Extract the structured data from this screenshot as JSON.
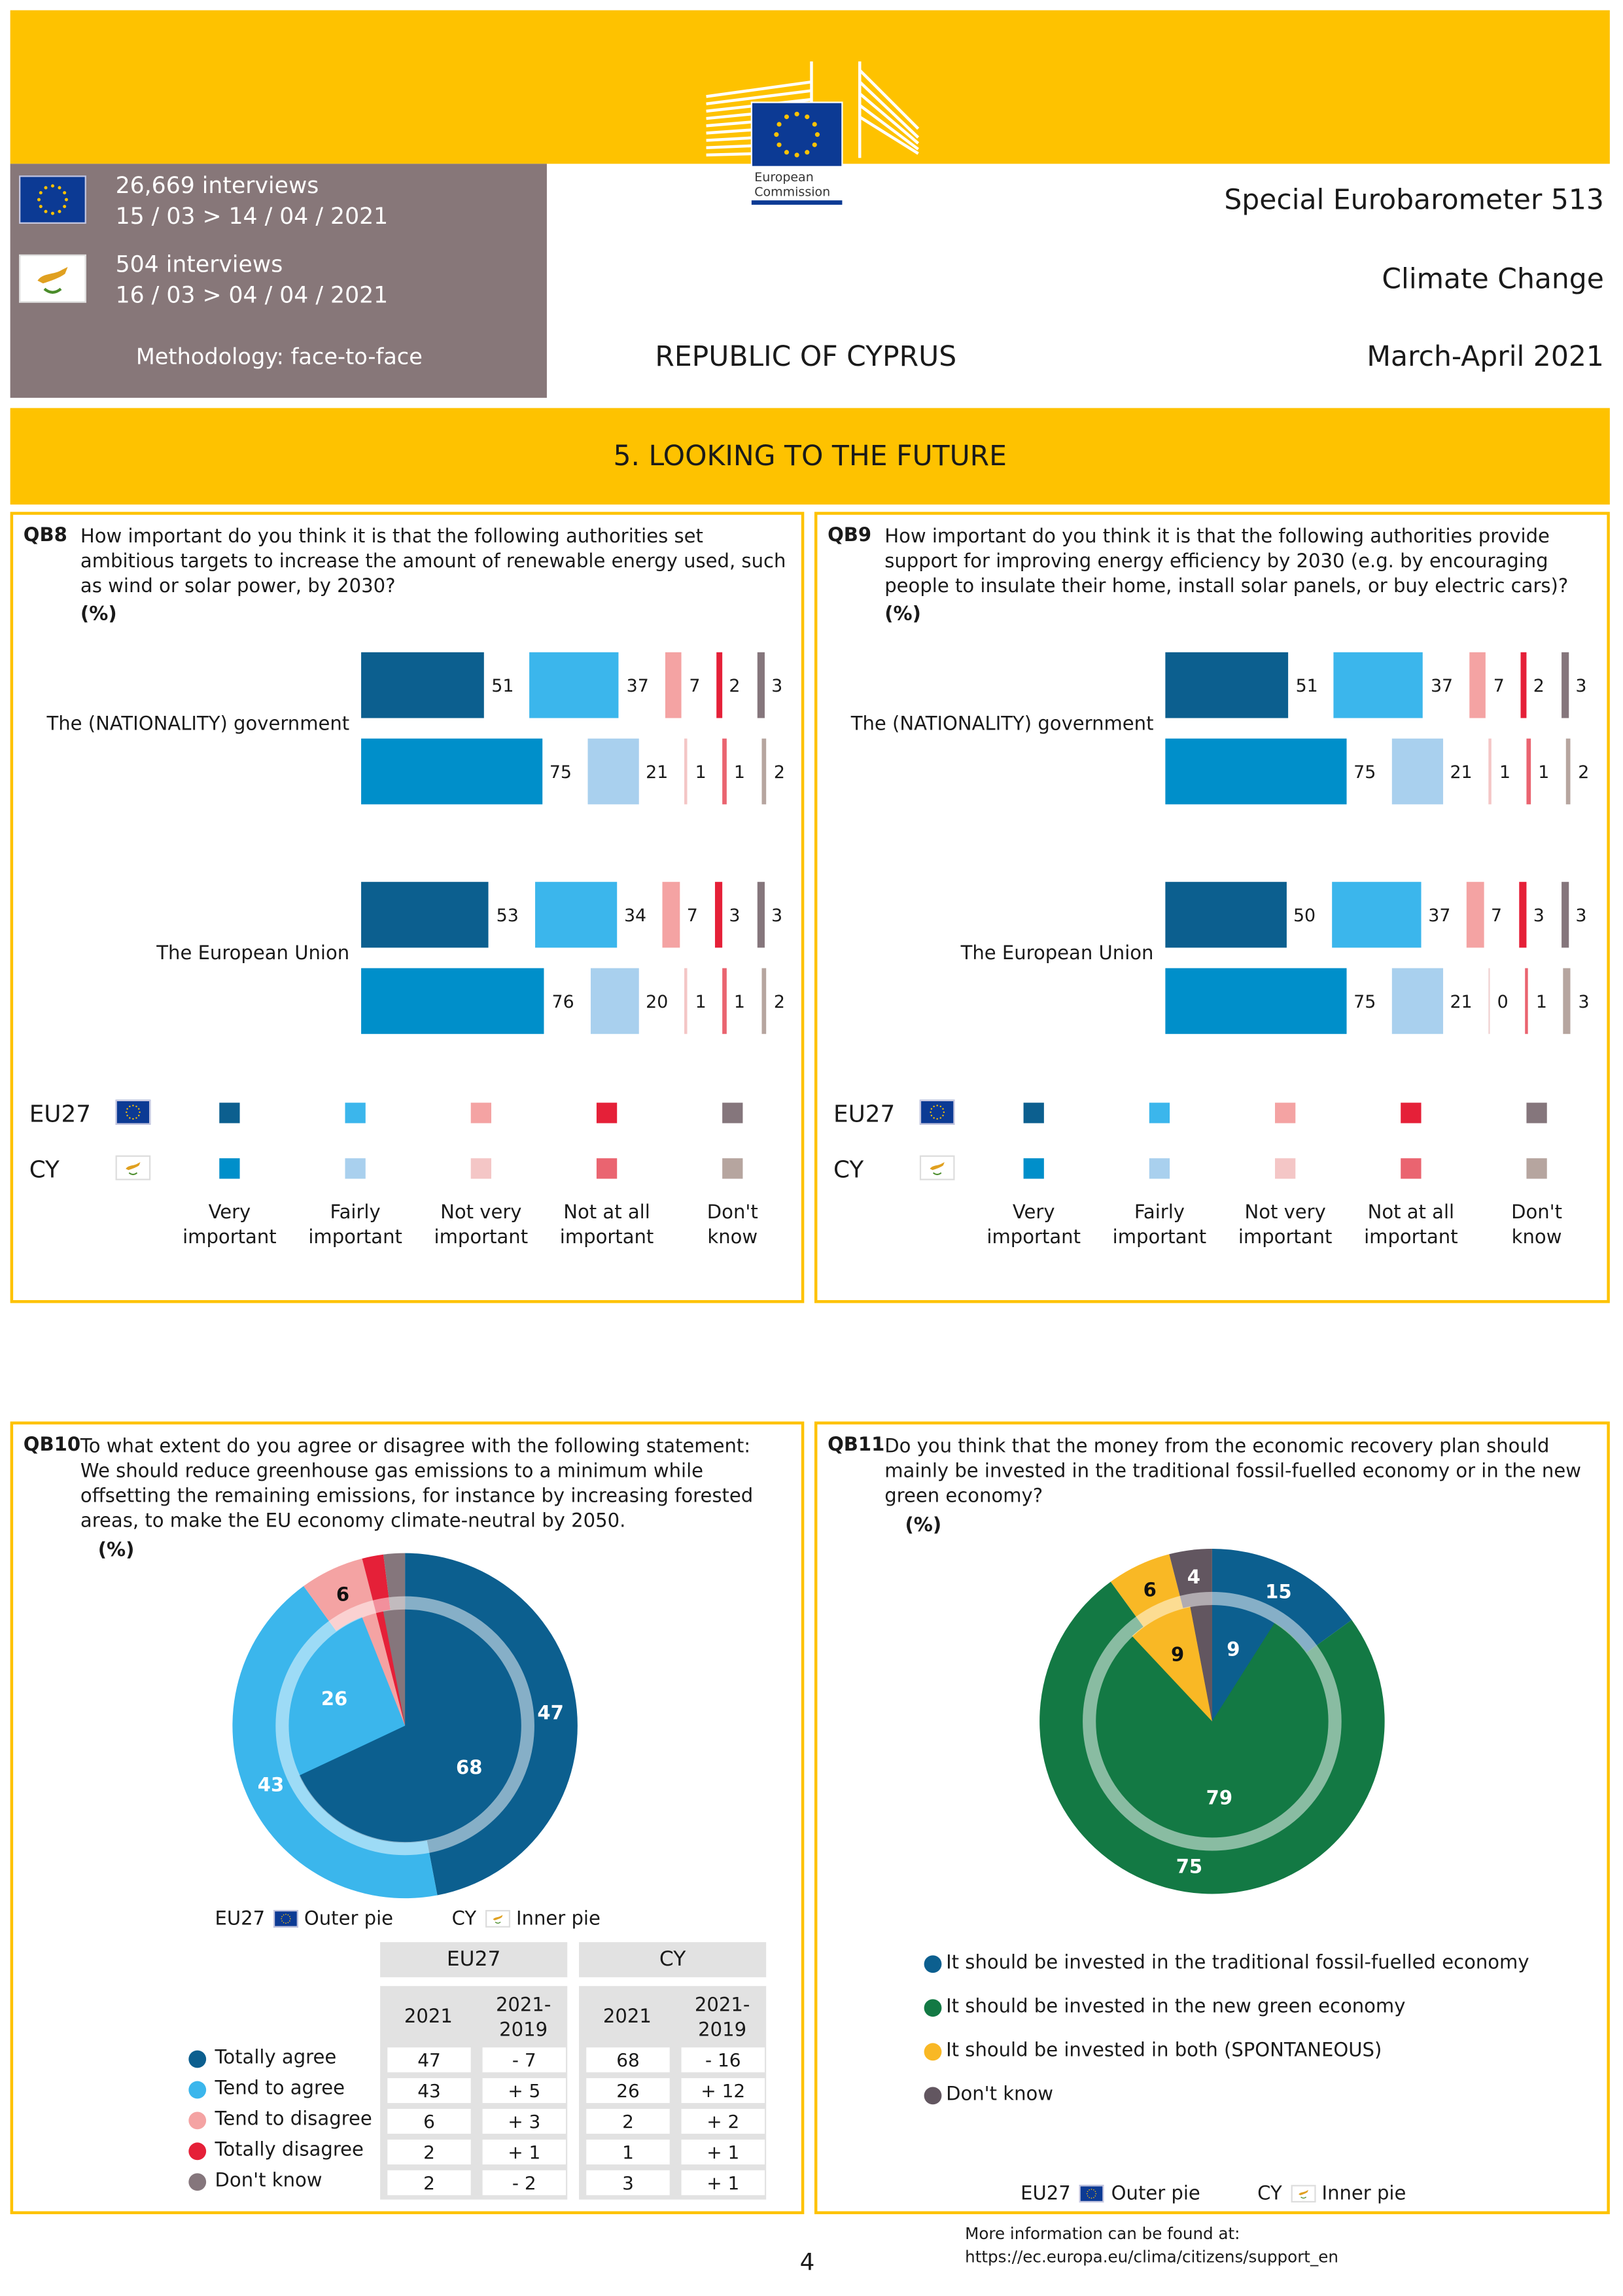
{
  "header": {
    "logo_text": "European Commission",
    "eu": {
      "interviews": "26,669 interviews",
      "dates": "15 / 03 > 14 / 04 / 2021"
    },
    "cy": {
      "interviews": "504 interviews",
      "dates": "16 / 03 > 04 / 04 / 2021"
    },
    "methodology": "Methodology: face-to-face",
    "survey": "Special Eurobarometer 513",
    "topic": "Climate Change",
    "period": "March-April 2021",
    "country": "REPUBLIC OF CYPRUS"
  },
  "section_title": "5. LOOKING TO THE FUTURE",
  "colors": {
    "yellow": "#fec200",
    "eu": [
      "#0c5f8f",
      "#3bb6ec",
      "#f4a3a3",
      "#e52038",
      "#85767c"
    ],
    "cy": [
      "#008fca",
      "#a9d0ee",
      "#f4c6c6",
      "#ea6470",
      "#b6a59f"
    ],
    "qb11": [
      "#0c5f8f",
      "#137944",
      "#f9b825",
      "#625660"
    ]
  },
  "bar_legend": {
    "series": [
      "EU27",
      "CY"
    ],
    "categories": [
      "Very important",
      "Fairly important",
      "Not very important",
      "Not at all important",
      "Don't know"
    ],
    "category_lines": [
      [
        "Very",
        "important"
      ],
      [
        "Fairly",
        "important"
      ],
      [
        "Not very",
        "important"
      ],
      [
        "Not at all",
        "important"
      ],
      [
        "Don't",
        "know"
      ]
    ]
  },
  "chart_data": [
    {
      "id": "QB8",
      "type": "bar",
      "question": "How important do you think it is that the following authorities set ambitious targets to increase the amount of renewable energy used, such as wind or solar power, by 2030?",
      "unit": "(%)",
      "categories": [
        "Very important",
        "Fairly important",
        "Not very important",
        "Not at all important",
        "Don't know"
      ],
      "groups": [
        {
          "label": "The (NATIONALITY) government",
          "series": [
            {
              "name": "EU27",
              "values": [
                51,
                37,
                7,
                2,
                3
              ]
            },
            {
              "name": "CY",
              "values": [
                75,
                21,
                1,
                1,
                2
              ]
            }
          ]
        },
        {
          "label": "The European Union",
          "series": [
            {
              "name": "EU27",
              "values": [
                53,
                34,
                7,
                3,
                3
              ]
            },
            {
              "name": "CY",
              "values": [
                76,
                20,
                1,
                1,
                2
              ]
            }
          ]
        }
      ]
    },
    {
      "id": "QB9",
      "type": "bar",
      "question": "How important do you think it is that the following authorities provide support for improving energy efficiency by 2030 (e.g. by encouraging people to insulate their home, install solar panels, or buy electric cars)?",
      "unit": "(%)",
      "categories": [
        "Very important",
        "Fairly important",
        "Not very important",
        "Not at all important",
        "Don't know"
      ],
      "groups": [
        {
          "label": "The (NATIONALITY) government",
          "series": [
            {
              "name": "EU27",
              "values": [
                51,
                37,
                7,
                2,
                3
              ]
            },
            {
              "name": "CY",
              "values": [
                75,
                21,
                1,
                1,
                2
              ]
            }
          ]
        },
        {
          "label": "The European Union",
          "series": [
            {
              "name": "EU27",
              "values": [
                50,
                37,
                7,
                3,
                3
              ]
            },
            {
              "name": "CY",
              "values": [
                75,
                21,
                0,
                1,
                3
              ]
            }
          ]
        }
      ]
    },
    {
      "id": "QB10",
      "type": "pie",
      "question": "To what extent do you agree or disagree with the following statement: We should reduce greenhouse gas emissions to a minimum while offsetting the remaining emissions, for instance by increasing forested areas, to make the EU economy climate-neutral by 2050.",
      "unit": "(%)",
      "categories": [
        "Totally agree",
        "Tend to agree",
        "Tend to disagree",
        "Totally disagree",
        "Don't know"
      ],
      "outer": {
        "name": "EU27",
        "values": [
          47,
          43,
          6,
          2,
          2
        ]
      },
      "inner": {
        "name": "CY",
        "values": [
          68,
          26,
          2,
          1,
          3
        ]
      },
      "pie_legend": {
        "eu": "EU27",
        "eu_desc": "Outer pie",
        "cy": "CY",
        "cy_desc": "Inner pie"
      },
      "table": {
        "headers": [
          "EU27",
          "CY"
        ],
        "subheaders": [
          "2021",
          "2021-\n2019",
          "2021",
          "2021-\n2019"
        ],
        "rows": [
          [
            "47",
            "- 7",
            "68",
            "- 16"
          ],
          [
            "43",
            "+ 5",
            "26",
            "+ 12"
          ],
          [
            "6",
            "+ 3",
            "2",
            "+ 2"
          ],
          [
            "2",
            "+ 1",
            "1",
            "+ 1"
          ],
          [
            "2",
            "- 2",
            "3",
            "+ 1"
          ]
        ]
      }
    },
    {
      "id": "QB11",
      "type": "pie",
      "question": "Do you think that the money from the economic recovery plan should mainly be invested in the traditional fossil-fuelled economy or in the new green economy?",
      "unit": "(%)",
      "categories": [
        "It should be invested in the traditional fossil-fuelled economy",
        "It should be invested in the new green economy",
        "It should be invested in both (SPONTANEOUS)",
        "Don't know"
      ],
      "outer": {
        "name": "EU27",
        "values": [
          15,
          75,
          6,
          4
        ]
      },
      "inner": {
        "name": "CY",
        "values": [
          9,
          79,
          9,
          3
        ]
      },
      "pie_legend": {
        "eu": "EU27",
        "eu_desc": "Outer pie",
        "cy": "CY",
        "cy_desc": "Inner pie"
      }
    }
  ],
  "footer": {
    "page_number": "4",
    "more_info": "More information can be found at:",
    "url": "https://ec.europa.eu/clima/citizens/support_en"
  }
}
